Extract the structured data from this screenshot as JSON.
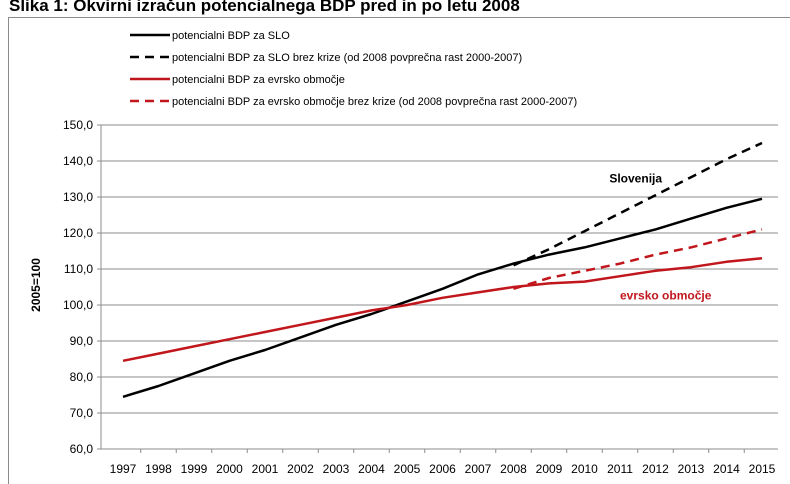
{
  "page": {
    "title": "Slika 1: Okvirni izračun potencialnega BDP pred in po letu 2008"
  },
  "chart_data": {
    "type": "line",
    "title": "",
    "xlabel": "",
    "ylabel": "2005=100",
    "ylim": [
      60,
      150
    ],
    "ytick_step": 10,
    "ytick_labels": [
      "60,0",
      "70,0",
      "80,0",
      "90,0",
      "100,0",
      "110,0",
      "120,0",
      "130,0",
      "140,0",
      "150,0"
    ],
    "xlim": [
      1997,
      2015
    ],
    "x_ticks": [
      1997,
      1998,
      1999,
      2000,
      2001,
      2002,
      2003,
      2004,
      2005,
      2006,
      2007,
      2008,
      2009,
      2010,
      2011,
      2012,
      2013,
      2014,
      2015
    ],
    "grid": "horizontal",
    "legend": "top-left",
    "series": [
      {
        "name": "potencialni BDP za SLO",
        "color": "#000000",
        "dashed": false,
        "x": [
          1997,
          1998,
          1999,
          2000,
          2001,
          2002,
          2003,
          2004,
          2005,
          2006,
          2007,
          2008,
          2009,
          2010,
          2011,
          2012,
          2013,
          2014,
          2015
        ],
        "y": [
          74.5,
          77.5,
          81.0,
          84.5,
          87.5,
          91.0,
          94.5,
          97.5,
          101.0,
          104.5,
          108.5,
          111.5,
          114.0,
          116.0,
          118.5,
          121.0,
          124.0,
          127.0,
          129.5
        ]
      },
      {
        "name": "potencialni BDP za SLO brez krize (od 2008 povprečna rast 2000-2007)",
        "color": "#000000",
        "dashed": true,
        "x": [
          2008,
          2009,
          2010,
          2011,
          2012,
          2013,
          2014,
          2015
        ],
        "y": [
          111.0,
          115.5,
          120.5,
          125.5,
          130.5,
          135.5,
          140.5,
          145.0
        ]
      },
      {
        "name": "potencialni BDP za evrsko območje",
        "color": "#c0161c",
        "dashed": false,
        "x": [
          1997,
          1998,
          1999,
          2000,
          2001,
          2002,
          2003,
          2004,
          2005,
          2006,
          2007,
          2008,
          2009,
          2010,
          2011,
          2012,
          2013,
          2014,
          2015
        ],
        "y": [
          84.5,
          86.5,
          88.5,
          90.5,
          92.5,
          94.5,
          96.5,
          98.5,
          100.0,
          102.0,
          103.5,
          105.0,
          106.0,
          106.5,
          108.0,
          109.5,
          110.5,
          112.0,
          113.0
        ]
      },
      {
        "name": "potencialni BDP za evrsko območje brez krize (od 2008 povprečna rast 2000-2007)",
        "color": "#c0161c",
        "dashed": true,
        "x": [
          2008,
          2009,
          2010,
          2011,
          2012,
          2013,
          2014,
          2015
        ],
        "y": [
          104.5,
          107.5,
          109.5,
          111.5,
          114.0,
          116.0,
          118.5,
          121.0
        ]
      }
    ],
    "annotations": [
      {
        "text": "Slovenija",
        "x": 2010.7,
        "y": 134,
        "color": "#000000"
      },
      {
        "text": "evrsko območje",
        "x": 2011.0,
        "y": 101.5,
        "color": "#c0161c"
      }
    ]
  }
}
